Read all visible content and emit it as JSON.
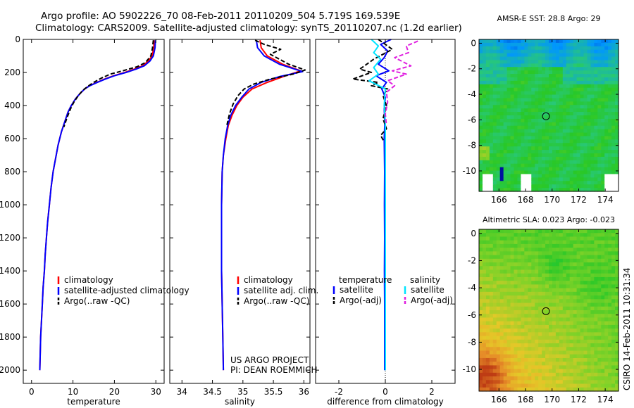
{
  "header": {
    "line1": "Argo profile: AO 5902226_70 08-Feb-2011 20110209_504 5.719S 169.539E",
    "line2": "Climatology: CARS2009. Satellite-adjusted climatology: synTS_20110207.nc (1.2d earlier)"
  },
  "side_label": "CSIRO 14-Feb-2011 10:31:34",
  "colors": {
    "red": "#ff0000",
    "blue": "#0000ff",
    "black": "#000000",
    "cyan": "#00e5ff",
    "magenta": "#e020e0"
  },
  "chart_data": [
    {
      "id": "temperature",
      "type": "line",
      "xlabel": "temperature",
      "xlim": [
        -2,
        32
      ],
      "ylim": [
        2080,
        0
      ],
      "xticks": [
        "0",
        "10",
        "20",
        "30"
      ],
      "yticks": [
        "0",
        "200",
        "400",
        "600",
        "800",
        "1000",
        "1200",
        "1400",
        "1600",
        "1800",
        "2000"
      ],
      "legend": [
        "climatology",
        "satellite-adjusted climatology",
        "Argo(..raw -QC)"
      ],
      "series": [
        {
          "name": "climatology",
          "color": "red",
          "points": [
            [
              29.6,
              5
            ],
            [
              29.5,
              50
            ],
            [
              29.1,
              100
            ],
            [
              28.2,
              130
            ],
            [
              26.8,
              160
            ],
            [
              24.8,
              180
            ],
            [
              22.5,
              200
            ],
            [
              19.8,
              220
            ],
            [
              17.6,
              240
            ],
            [
              15.8,
              260
            ],
            [
              14.0,
              280
            ],
            [
              12.8,
              300
            ],
            [
              11.6,
              330
            ],
            [
              10.6,
              360
            ],
            [
              9.6,
              400
            ],
            [
              8.8,
              440
            ],
            [
              8.0,
              500
            ],
            [
              7.2,
              560
            ],
            [
              6.4,
              640
            ],
            [
              5.8,
              720
            ],
            [
              5.2,
              800
            ],
            [
              4.7,
              900
            ],
            [
              4.3,
              1000
            ],
            [
              3.9,
              1100
            ],
            [
              3.6,
              1200
            ],
            [
              3.3,
              1300
            ],
            [
              3.1,
              1400
            ],
            [
              2.8,
              1500
            ],
            [
              2.6,
              1600
            ],
            [
              2.4,
              1700
            ],
            [
              2.2,
              1800
            ],
            [
              2.1,
              1900
            ],
            [
              2.0,
              2000
            ]
          ]
        },
        {
          "name": "satellite-adjusted climatology",
          "color": "blue",
          "points": [
            [
              29.9,
              5
            ],
            [
              29.8,
              50
            ],
            [
              29.4,
              100
            ],
            [
              28.6,
              130
            ],
            [
              27.2,
              160
            ],
            [
              25.2,
              180
            ],
            [
              22.8,
              200
            ],
            [
              20.0,
              220
            ],
            [
              17.8,
              240
            ],
            [
              15.9,
              260
            ],
            [
              14.1,
              280
            ],
            [
              12.8,
              300
            ],
            [
              11.6,
              330
            ],
            [
              10.6,
              360
            ],
            [
              9.6,
              400
            ],
            [
              8.8,
              440
            ],
            [
              8.0,
              500
            ],
            [
              7.2,
              560
            ],
            [
              6.4,
              640
            ],
            [
              5.8,
              720
            ],
            [
              5.2,
              800
            ],
            [
              4.7,
              900
            ],
            [
              4.3,
              1000
            ],
            [
              3.9,
              1100
            ],
            [
              3.6,
              1200
            ],
            [
              3.3,
              1300
            ],
            [
              3.1,
              1400
            ],
            [
              2.8,
              1500
            ],
            [
              2.6,
              1600
            ],
            [
              2.4,
              1700
            ],
            [
              2.2,
              1800
            ],
            [
              2.1,
              1900
            ],
            [
              2.0,
              2000
            ]
          ]
        },
        {
          "name": "Argo(..raw -QC)",
          "color": "black",
          "dashed": true,
          "points": [
            [
              29.4,
              5
            ],
            [
              29.2,
              50
            ],
            [
              28.8,
              100
            ],
            [
              27.5,
              140
            ],
            [
              25.5,
              165
            ],
            [
              22.0,
              190
            ],
            [
              19.0,
              210
            ],
            [
              16.8,
              235
            ],
            [
              15.0,
              260
            ],
            [
              13.5,
              285
            ],
            [
              12.3,
              310
            ],
            [
              11.3,
              340
            ],
            [
              10.2,
              380
            ],
            [
              9.4,
              420
            ],
            [
              8.6,
              470
            ],
            [
              7.8,
              530
            ]
          ]
        }
      ]
    },
    {
      "id": "salinity",
      "type": "line",
      "xlabel": "salinity",
      "xlim": [
        33.8,
        36.1
      ],
      "ylim": [
        2080,
        0
      ],
      "xticks": [
        "34",
        "34.5",
        "35",
        "35.5",
        "36"
      ],
      "legend": [
        "climatology",
        "satellite adj. clim.",
        "Argo(..raw -QC)"
      ],
      "annotation": [
        "US ARGO PROJECT",
        "PI: DEAN ROEMMICH"
      ],
      "series": [
        {
          "name": "climatology",
          "color": "red",
          "points": [
            [
              35.28,
              5
            ],
            [
              35.3,
              50
            ],
            [
              35.4,
              100
            ],
            [
              35.65,
              150
            ],
            [
              35.95,
              190
            ],
            [
              35.7,
              220
            ],
            [
              35.4,
              260
            ],
            [
              35.15,
              300
            ],
            [
              35.0,
              350
            ],
            [
              34.9,
              400
            ],
            [
              34.82,
              460
            ],
            [
              34.76,
              520
            ],
            [
              34.72,
              600
            ],
            [
              34.68,
              700
            ],
            [
              34.66,
              800
            ],
            [
              34.65,
              1000
            ],
            [
              34.65,
              1200
            ],
            [
              34.65,
              1400
            ],
            [
              34.66,
              1600
            ],
            [
              34.67,
              1800
            ],
            [
              34.68,
              2000
            ]
          ]
        },
        {
          "name": "satellite adj. clim.",
          "color": "blue",
          "points": [
            [
              35.22,
              5
            ],
            [
              35.24,
              50
            ],
            [
              35.35,
              100
            ],
            [
              35.6,
              150
            ],
            [
              35.98,
              195
            ],
            [
              35.6,
              225
            ],
            [
              35.3,
              260
            ],
            [
              35.1,
              300
            ],
            [
              34.98,
              350
            ],
            [
              34.88,
              400
            ],
            [
              34.8,
              460
            ],
            [
              34.75,
              520
            ],
            [
              34.71,
              600
            ],
            [
              34.68,
              700
            ],
            [
              34.66,
              800
            ],
            [
              34.65,
              1000
            ],
            [
              34.65,
              1200
            ],
            [
              34.65,
              1400
            ],
            [
              34.66,
              1600
            ],
            [
              34.67,
              1800
            ],
            [
              34.68,
              2000
            ]
          ]
        },
        {
          "name": "Argo(..raw -QC)",
          "color": "black",
          "dashed": true,
          "points": [
            [
              35.2,
              5
            ],
            [
              35.35,
              30
            ],
            [
              35.62,
              60
            ],
            [
              35.45,
              90
            ],
            [
              35.6,
              120
            ],
            [
              35.75,
              150
            ],
            [
              36.02,
              185
            ],
            [
              35.82,
              210
            ],
            [
              35.45,
              240
            ],
            [
              35.18,
              270
            ],
            [
              35.02,
              300
            ],
            [
              34.92,
              340
            ],
            [
              34.84,
              390
            ],
            [
              34.78,
              450
            ],
            [
              34.73,
              530
            ]
          ]
        }
      ]
    },
    {
      "id": "difference",
      "type": "line",
      "xlabel": "difference from climatology",
      "xlim": [
        -3,
        3
      ],
      "ylim": [
        2080,
        0
      ],
      "xticks": [
        "-2",
        "0",
        "2"
      ],
      "legend_temperature_title": "temperature",
      "legend_salinity_title": "salinity",
      "legend_temperature": [
        "satellite",
        "Argo(-adj)"
      ],
      "legend_salinity": [
        "satellite",
        "Argo(-adj)"
      ],
      "series": [
        {
          "name": "temperature satellite",
          "color": "blue",
          "points": [
            [
              0.25,
              0
            ],
            [
              -0.2,
              30
            ],
            [
              0.1,
              70
            ],
            [
              -0.05,
              110
            ],
            [
              -0.3,
              150
            ],
            [
              0.15,
              190
            ],
            [
              -0.4,
              220
            ],
            [
              0.05,
              260
            ],
            [
              -0.15,
              300
            ],
            [
              0.0,
              350
            ],
            [
              -0.05,
              420
            ],
            [
              -0.02,
              500
            ],
            [
              -0.05,
              600
            ],
            [
              -0.03,
              800
            ],
            [
              -0.04,
              1000
            ],
            [
              -0.03,
              1200
            ],
            [
              -0.04,
              1400
            ],
            [
              -0.03,
              1600
            ],
            [
              -0.03,
              1800
            ],
            [
              -0.03,
              2000
            ]
          ]
        },
        {
          "name": "temperature Argo(-adj)",
          "color": "black",
          "dashed": true,
          "points": [
            [
              -0.3,
              0
            ],
            [
              0.3,
              60
            ],
            [
              -0.5,
              120
            ],
            [
              -1.1,
              180
            ],
            [
              -0.6,
              200
            ],
            [
              -1.4,
              240
            ],
            [
              -0.3,
              260
            ],
            [
              -0.6,
              280
            ],
            [
              0.1,
              300
            ],
            [
              -0.1,
              340
            ],
            [
              0.05,
              400
            ],
            [
              -0.1,
              480
            ],
            [
              0.05,
              540
            ],
            [
              -0.2,
              580
            ],
            [
              -0.05,
              620
            ]
          ]
        },
        {
          "name": "salinity satellite",
          "color": "cyan",
          "points": [
            [
              -0.6,
              0
            ],
            [
              -0.3,
              40
            ],
            [
              -0.5,
              80
            ],
            [
              -0.2,
              120
            ],
            [
              -0.5,
              170
            ],
            [
              -0.3,
              210
            ],
            [
              -0.7,
              250
            ],
            [
              0.0,
              300
            ],
            [
              -0.05,
              400
            ],
            [
              0.0,
              500
            ],
            [
              0.0,
              700
            ],
            [
              0.0,
              900
            ],
            [
              0.0,
              1200
            ],
            [
              0.0,
              1500
            ],
            [
              0.0,
              1800
            ],
            [
              0.0,
              2000
            ]
          ]
        },
        {
          "name": "salinity Argo(-adj)",
          "color": "magenta",
          "dashed": true,
          "points": [
            [
              1.4,
              10
            ],
            [
              0.9,
              40
            ],
            [
              1.0,
              80
            ],
            [
              0.4,
              110
            ],
            [
              1.1,
              160
            ],
            [
              0.3,
              190
            ],
            [
              0.9,
              210
            ],
            [
              0.1,
              250
            ],
            [
              0.4,
              280
            ],
            [
              0.05,
              320
            ],
            [
              0.1,
              380
            ],
            [
              0.0,
              450
            ],
            [
              0.05,
              520
            ]
          ]
        }
      ]
    },
    {
      "id": "sst_map",
      "type": "heatmap",
      "title": "AMSR-E SST: 28.8 Argo: 29",
      "xlim": [
        164.5,
        175
      ],
      "ylim": [
        -11.6,
        0.3
      ],
      "xticks": [
        "166",
        "168",
        "170",
        "172",
        "174"
      ],
      "yticks": [
        "0",
        "-2",
        "-4",
        "-6",
        "-8",
        "-10"
      ],
      "marker": [
        169.54,
        -5.72
      ]
    },
    {
      "id": "sla_map",
      "type": "heatmap",
      "title": "Altimetric SLA: 0.023 Argo: -0.023",
      "xlim": [
        164.5,
        175
      ],
      "ylim": [
        -11.6,
        0.3
      ],
      "xticks": [
        "166",
        "168",
        "170",
        "172",
        "174"
      ],
      "yticks": [
        "0",
        "-2",
        "-4",
        "-6",
        "-8",
        "-10"
      ],
      "marker": [
        169.54,
        -5.72
      ]
    }
  ]
}
